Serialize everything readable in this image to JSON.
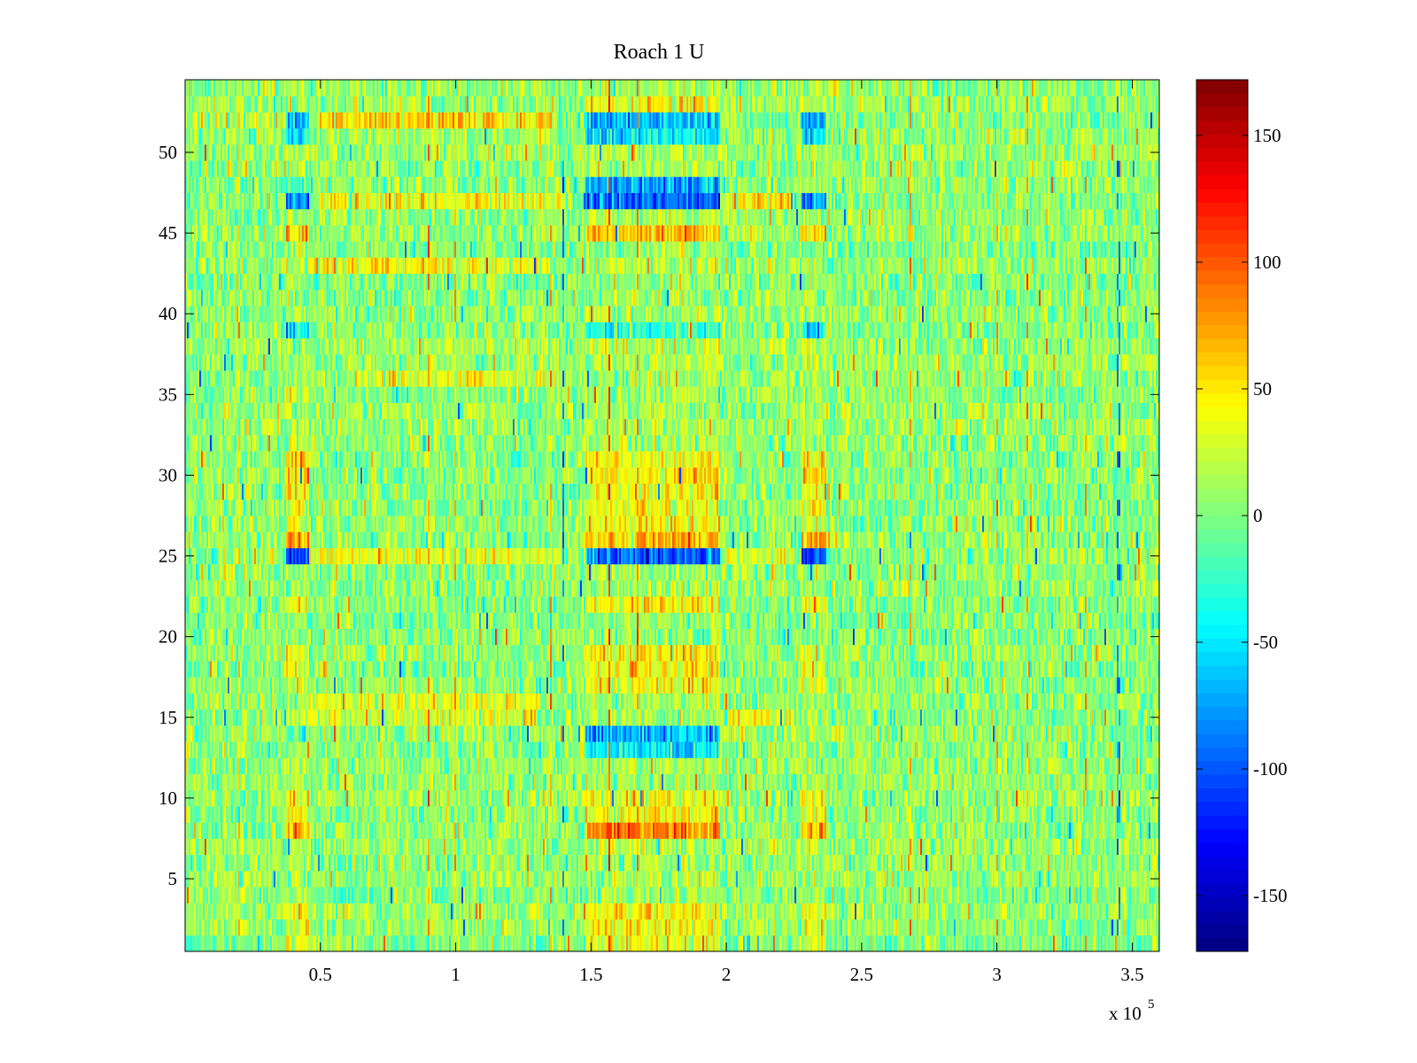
{
  "chart_data": {
    "type": "heatmap",
    "title": "Roach 1 U",
    "xlabel": "",
    "ylabel": "",
    "x_multiplier_label": "x 10",
    "x_multiplier_exponent": "5",
    "xlim": [
      0,
      360000
    ],
    "ylim": [
      0.5,
      54.5
    ],
    "rows": 54,
    "x_ticks": [
      {
        "value": 50000,
        "label": "0.5"
      },
      {
        "value": 100000,
        "label": "1"
      },
      {
        "value": 150000,
        "label": "1.5"
      },
      {
        "value": 200000,
        "label": "2"
      },
      {
        "value": 250000,
        "label": "2.5"
      },
      {
        "value": 300000,
        "label": "3"
      },
      {
        "value": 350000,
        "label": "3.5"
      }
    ],
    "y_ticks": [
      {
        "value": 5,
        "label": "5"
      },
      {
        "value": 10,
        "label": "10"
      },
      {
        "value": 15,
        "label": "15"
      },
      {
        "value": 20,
        "label": "20"
      },
      {
        "value": 25,
        "label": "25"
      },
      {
        "value": 30,
        "label": "30"
      },
      {
        "value": 35,
        "label": "35"
      },
      {
        "value": 40,
        "label": "40"
      },
      {
        "value": 45,
        "label": "45"
      },
      {
        "value": 50,
        "label": "50"
      }
    ],
    "colorbar": {
      "colormap": "jet",
      "clim": [
        -172,
        172
      ],
      "ticks": [
        {
          "value": 150,
          "label": "150"
        },
        {
          "value": 100,
          "label": "100"
        },
        {
          "value": 50,
          "label": "50"
        },
        {
          "value": 0,
          "label": "0"
        },
        {
          "value": -50,
          "label": "-50"
        },
        {
          "value": -100,
          "label": "-100"
        },
        {
          "value": -150,
          "label": "-150"
        }
      ]
    },
    "activity_periods": [
      {
        "x_start": 37000,
        "x_end": 46000
      },
      {
        "x_start": 148000,
        "x_end": 198000
      },
      {
        "x_start": 228000,
        "x_end": 237000
      }
    ],
    "row_patterns": [
      {
        "row": 25,
        "first_period": -110,
        "second_period": -95,
        "third_period": -100
      },
      {
        "row": 26,
        "first_period": 70,
        "second_period": 65,
        "third_period": 70
      },
      {
        "row": 8,
        "first_period": 70,
        "second_period": 80,
        "third_period": 75
      },
      {
        "row": 45,
        "first_period": 55,
        "second_period": 65,
        "third_period": 55
      },
      {
        "row": 47,
        "first_period": -85,
        "second_period": -95,
        "third_period": -80
      },
      {
        "row": 48,
        "first_period": -20,
        "second_period": -75,
        "third_period": 20
      },
      {
        "row": 52,
        "first_period": -70,
        "second_period": -70,
        "third_period": -60
      },
      {
        "row": 53,
        "first_period": 15,
        "second_period": 40,
        "third_period": 15
      },
      {
        "row": 51,
        "first_period": -55,
        "second_period": -45,
        "third_period": -50
      },
      {
        "row": 30,
        "first_period": 55,
        "second_period": 50,
        "third_period": 45
      },
      {
        "row": 31,
        "first_period": 50,
        "second_period": 45,
        "third_period": 40
      },
      {
        "row": 29,
        "first_period": 45,
        "second_period": 40,
        "third_period": 40
      },
      {
        "row": 27,
        "first_period": 35,
        "second_period": 40,
        "third_period": 35
      },
      {
        "row": 28,
        "first_period": 40,
        "second_period": 40,
        "third_period": 30
      },
      {
        "row": 22,
        "first_period": 45,
        "second_period": 45,
        "third_period": 40
      },
      {
        "row": 19,
        "first_period": 40,
        "second_period": 40,
        "third_period": 35
      },
      {
        "row": 18,
        "first_period": 35,
        "second_period": 45,
        "third_period": 35
      },
      {
        "row": 17,
        "first_period": 35,
        "second_period": 40,
        "third_period": 30
      },
      {
        "row": 10,
        "first_period": 40,
        "second_period": 40,
        "third_period": 40
      },
      {
        "row": 9,
        "first_period": 40,
        "second_period": 45,
        "third_period": 40
      },
      {
        "row": 14,
        "first_period": -10,
        "second_period": -70,
        "third_period": 10
      },
      {
        "row": 13,
        "first_period": 10,
        "second_period": -45,
        "third_period": 5
      },
      {
        "row": 39,
        "first_period": -45,
        "second_period": -30,
        "third_period": -50
      },
      {
        "row": 3,
        "first_period": 45,
        "second_period": 45,
        "third_period": 40
      },
      {
        "row": 2,
        "first_period": 40,
        "second_period": 40,
        "third_period": 35
      },
      {
        "row": 1,
        "first_period": 35,
        "second_period": 35,
        "third_period": 30
      }
    ],
    "interval_patterns": [
      {
        "row": 52,
        "x_start": 50000,
        "x_end": 135000,
        "value": 55
      },
      {
        "row": 47,
        "x_start": 50000,
        "x_end": 140000,
        "value": 40
      },
      {
        "row": 43,
        "x_start": 45000,
        "x_end": 135000,
        "value": 40
      },
      {
        "row": 36,
        "x_start": 60000,
        "x_end": 140000,
        "value": 30
      },
      {
        "row": 16,
        "x_start": 45000,
        "x_end": 130000,
        "value": 35
      },
      {
        "row": 15,
        "x_start": 45000,
        "x_end": 130000,
        "value": 30
      },
      {
        "row": 47,
        "x_start": 200000,
        "x_end": 225000,
        "value": 45
      },
      {
        "row": 15,
        "x_start": 200000,
        "x_end": 225000,
        "value": 40
      },
      {
        "row": 25,
        "x_start": 50000,
        "x_end": 68000,
        "value": 45
      },
      {
        "row": 25,
        "x_start": 68000,
        "x_end": 140000,
        "value": 35
      },
      {
        "row": 25,
        "x_start": 200000,
        "x_end": 225000,
        "value": 30
      },
      {
        "row": 52,
        "x_start": 0,
        "x_end": 37000,
        "value": 10
      }
    ],
    "spike_columns": [
      {
        "x": 90000,
        "value": 90
      },
      {
        "x": 100000,
        "value": 70
      },
      {
        "x": 157000,
        "value": 110
      },
      {
        "x": 167000,
        "value": 90
      },
      {
        "x": 140000,
        "value": -90
      },
      {
        "x": 135000,
        "value": 80
      },
      {
        "x": 300000,
        "value": 70
      },
      {
        "x": 311000,
        "value": 80
      },
      {
        "x": 333000,
        "value": 80
      },
      {
        "x": 268000,
        "value": 70
      },
      {
        "x": 345000,
        "value": -90
      },
      {
        "x": 20000,
        "value": 60
      }
    ]
  }
}
